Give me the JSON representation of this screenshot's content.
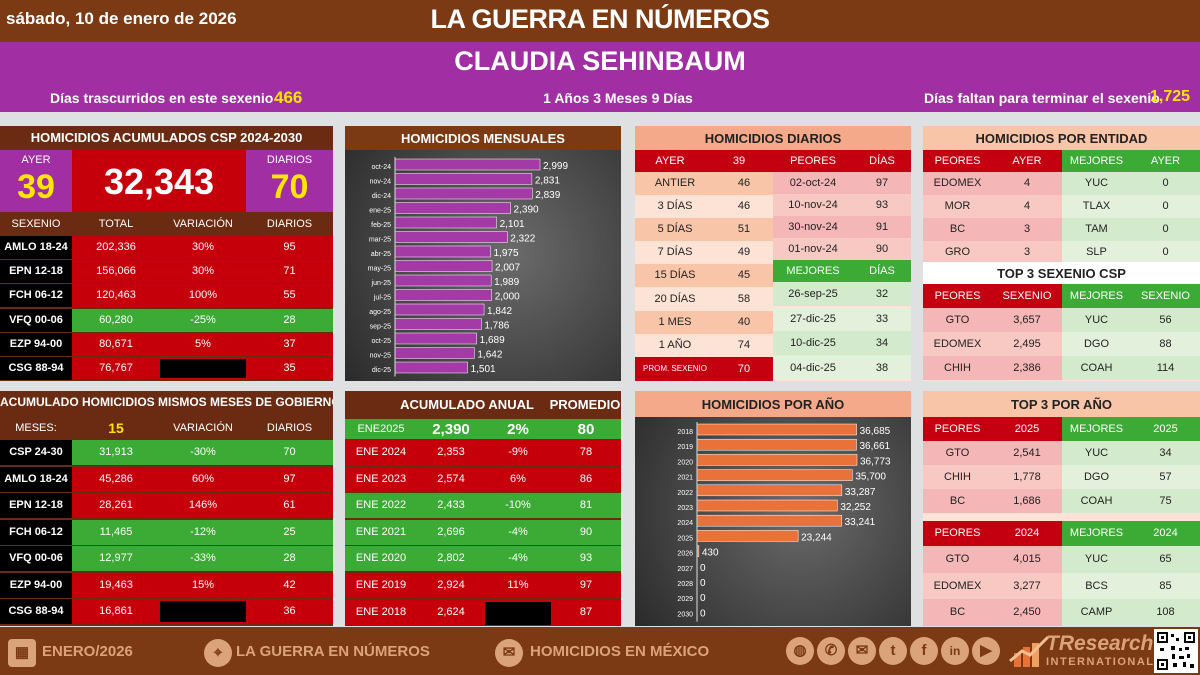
{
  "header": {
    "date": "sábado, 10 de enero de 2026",
    "title": "LA GUERRA EN NÚMEROS",
    "president": "CLAUDIA SEHINBAUM",
    "days_elapsed_label": "Días trascurridos en este sexenio",
    "days_elapsed": "466",
    "duration": "1 Años 3 Meses 9 Días",
    "days_left_label": "Días faltan para terminar el sexenio",
    "days_left": "1,725"
  },
  "acumulados": {
    "title": "HOMICIDIOS ACUMULADOS CSP 2024-2030",
    "ayer_label": "AYER",
    "ayer": "39",
    "total": "32,343",
    "diarios_label": "DIARIOS",
    "diarios": "70",
    "headers": [
      "SEXENIO",
      "TOTAL",
      "VARIACIÓN",
      "DIARIOS"
    ],
    "rows": [
      {
        "s": "AMLO 18-24",
        "t": "202,336",
        "v": "30%",
        "d": "95",
        "c": "red"
      },
      {
        "s": "EPN 12-18",
        "t": "156,066",
        "v": "30%",
        "d": "71",
        "c": "red"
      },
      {
        "s": "FCH 06-12",
        "t": "120,463",
        "v": "100%",
        "d": "55",
        "c": "red"
      },
      {
        "s": "VFQ 00-06",
        "t": "60,280",
        "v": "-25%",
        "d": "28",
        "c": "green"
      },
      {
        "s": "EZP 94-00",
        "t": "80,671",
        "v": "5%",
        "d": "37",
        "c": "red"
      },
      {
        "s": "CSG 88-94",
        "t": "76,767",
        "v": "",
        "d": "35",
        "c": "red"
      }
    ]
  },
  "mismos": {
    "title": "ACUMULADO HOMICIDIOS MISMOS MESES DE GOBIERNO",
    "meses_label": "MESES:",
    "meses": "15",
    "var_label": "VARIACIÓN",
    "diarios_label": "DIARIOS",
    "rows": [
      {
        "s": "CSP 24-30",
        "t": "31,913",
        "v": "-30%",
        "d": "70",
        "c": "green"
      },
      {
        "s": "AMLO 18-24",
        "t": "45,286",
        "v": "60%",
        "d": "97",
        "c": "red"
      },
      {
        "s": "EPN 12-18",
        "t": "28,261",
        "v": "146%",
        "d": "61",
        "c": "red"
      },
      {
        "s": "FCH 06-12",
        "t": "11,465",
        "v": "-12%",
        "d": "25",
        "c": "green"
      },
      {
        "s": "VFQ 00-06",
        "t": "12,977",
        "v": "-33%",
        "d": "28",
        "c": "green"
      },
      {
        "s": "EZP 94-00",
        "t": "19,463",
        "v": "15%",
        "d": "42",
        "c": "red"
      },
      {
        "s": "CSG 88-94",
        "t": "16,861",
        "v": "",
        "d": "36",
        "c": "red"
      }
    ]
  },
  "mensuales": {
    "title": "HOMICIDIOS MENSUALES"
  },
  "anual": {
    "title": "ACUMULADO ANUAL",
    "promedio_label": "PROMEDIO",
    "rows": [
      {
        "y": "ENE2025",
        "t": "2,390",
        "v": "2%",
        "p": "80",
        "c": "green"
      },
      {
        "y": "ENE 2024",
        "t": "2,353",
        "v": "-9%",
        "p": "78",
        "c": "red"
      },
      {
        "y": "ENE 2023",
        "t": "2,574",
        "v": "6%",
        "p": "86",
        "c": "red"
      },
      {
        "y": "ENE 2022",
        "t": "2,433",
        "v": "-10%",
        "p": "81",
        "c": "green"
      },
      {
        "y": "ENE 2021",
        "t": "2,696",
        "v": "-4%",
        "p": "90",
        "c": "green"
      },
      {
        "y": "ENE 2020",
        "t": "2,802",
        "v": "-4%",
        "p": "93",
        "c": "green"
      },
      {
        "y": "ENE 2019",
        "t": "2,924",
        "v": "11%",
        "p": "97",
        "c": "red"
      },
      {
        "y": "ENE 2018",
        "t": "2,624",
        "v": "",
        "p": "87",
        "c": "red"
      }
    ]
  },
  "diarios": {
    "title": "HOMICIDIOS DIARIOS",
    "ayer_label": "AYER",
    "ayer": "39",
    "peores_label": "PEORES",
    "dias_label": "DÍAS",
    "mejores_label": "MEJORES",
    "left": [
      {
        "l": "ANTIER",
        "v": "46"
      },
      {
        "l": "3 DÍAS",
        "v": "46"
      },
      {
        "l": "5 DÍAS",
        "v": "51"
      },
      {
        "l": "7 DÍAS",
        "v": "49"
      },
      {
        "l": "15 DÍAS",
        "v": "45"
      },
      {
        "l": "20 DÍAS",
        "v": "58"
      },
      {
        "l": "1 MES",
        "v": "40"
      },
      {
        "l": "1 AÑO",
        "v": "74"
      }
    ],
    "prom_label": "PROM. SEXENIO",
    "prom": "70",
    "peores": [
      {
        "d": "02-oct-24",
        "v": "97"
      },
      {
        "d": "10-nov-24",
        "v": "93"
      },
      {
        "d": "30-nov-24",
        "v": "91"
      },
      {
        "d": "01-nov-24",
        "v": "90"
      }
    ],
    "mejores": [
      {
        "d": "26-sep-25",
        "v": "32"
      },
      {
        "d": "27-dic-25",
        "v": "33"
      },
      {
        "d": "10-dic-25",
        "v": "34"
      },
      {
        "d": "04-dic-25",
        "v": "38"
      }
    ]
  },
  "porano": {
    "title": "HOMICIDIOS POR AÑO"
  },
  "entidad": {
    "title": "HOMICIDIOS POR ENTIDAD",
    "h": [
      "PEORES",
      "AYER",
      "MEJORES",
      "AYER"
    ],
    "rows": [
      [
        "EDOMEX",
        "4",
        "YUC",
        "0"
      ],
      [
        "MOR",
        "4",
        "TLAX",
        "0"
      ],
      [
        "BC",
        "3",
        "TAM",
        "0"
      ],
      [
        "GRO",
        "3",
        "SLP",
        "0"
      ]
    ],
    "top3_title": "TOP 3 SEXENIO CSP",
    "h2": [
      "PEORES",
      "SEXENIO",
      "MEJORES",
      "SEXENIO"
    ],
    "rows2": [
      [
        "GTO",
        "3,657",
        "YUC",
        "56"
      ],
      [
        "EDOMEX",
        "2,495",
        "DGO",
        "88"
      ],
      [
        "CHIH",
        "2,386",
        "COAH",
        "114"
      ]
    ]
  },
  "top3ano": {
    "title": "TOP 3 POR AÑO",
    "h2025": [
      "PEORES",
      "2025",
      "MEJORES",
      "2025"
    ],
    "rows2025": [
      [
        "GTO",
        "2,541",
        "YUC",
        "34"
      ],
      [
        "CHIH",
        "1,778",
        "DGO",
        "57"
      ],
      [
        "BC",
        "1,686",
        "COAH",
        "75"
      ]
    ],
    "h2024": [
      "PEORES",
      "2024",
      "MEJORES",
      "2024"
    ],
    "rows2024": [
      [
        "GTO",
        "4,015",
        "YUC",
        "65"
      ],
      [
        "EDOMEX",
        "3,277",
        "BCS",
        "85"
      ],
      [
        "BC",
        "2,450",
        "CAMP",
        "108"
      ]
    ]
  },
  "footer": {
    "f1": "ENERO/2026",
    "f2": "LA GUERRA EN NÚMEROS",
    "f3": "HOMICIDIOS EN MÉXICO",
    "brand1": "TResearch",
    "brand2": "INTERNATIONAL"
  },
  "chart_data": [
    {
      "type": "bar",
      "title": "HOMICIDIOS MENSUALES",
      "orientation": "horizontal",
      "categories": [
        "oct-24",
        "nov-24",
        "dic-24",
        "ene-25",
        "feb-25",
        "mar-25",
        "abr-25",
        "may-25",
        "jun-25",
        "jul-25",
        "ago-25",
        "sep-25",
        "oct-25",
        "nov-25",
        "dic-25"
      ],
      "values": [
        2999,
        2831,
        2839,
        2390,
        2101,
        2322,
        1975,
        2007,
        1989,
        2000,
        1842,
        1786,
        1689,
        1642,
        1501
      ],
      "labels": [
        "2,999",
        "2,831",
        "2,839",
        "2,390",
        "2,101",
        "2,322",
        "1,975",
        "2,007",
        "1,989",
        "2,000",
        "1,842",
        "1,786",
        "1,689",
        "1,642",
        "1,501"
      ],
      "color": "#a43aa6"
    },
    {
      "type": "bar",
      "title": "HOMICIDIOS POR AÑO",
      "orientation": "horizontal",
      "categories": [
        "2018",
        "2019",
        "2020",
        "2021",
        "2022",
        "2023",
        "2024",
        "2025",
        "2026",
        "2027",
        "2028",
        "2029",
        "2030"
      ],
      "values": [
        36685,
        36661,
        36773,
        35700,
        33287,
        32252,
        33241,
        23244,
        430,
        0,
        0,
        0,
        0
      ],
      "labels": [
        "36,685",
        "36,661",
        "36,773",
        "35,700",
        "33,287",
        "32,252",
        "33,241",
        "23,244",
        "430",
        "0",
        "0",
        "0",
        "0"
      ],
      "color": "#e8723a"
    }
  ]
}
